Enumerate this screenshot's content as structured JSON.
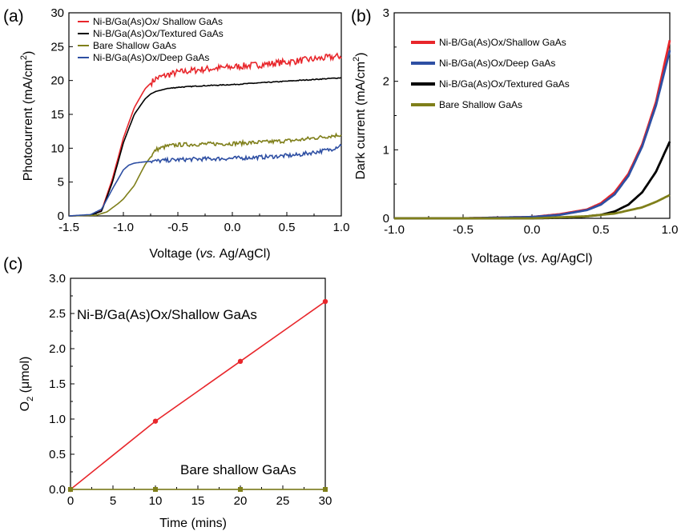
{
  "chart_data": [
    {
      "panel": "(a)",
      "type": "line",
      "xlabel_parts": [
        "Voltage (",
        "vs.",
        " Ag/AgCl)"
      ],
      "ylabel_parts": [
        "Photocurrent (mA/cm",
        "2",
        ")"
      ],
      "xlim": [
        -1.5,
        1.0
      ],
      "ylim": [
        0,
        30
      ],
      "xticks": [
        "-1.5",
        "-1.0",
        "-0.5",
        "0.0",
        "0.5",
        "1.0"
      ],
      "yticks": [
        "0",
        "5",
        "10",
        "15",
        "20",
        "25",
        "30"
      ],
      "legend_position": "top-left",
      "series": [
        {
          "name": "Ni-B/Ga(As)Ox/ Shallow GaAs",
          "color": "#e8262b",
          "noisy": true,
          "x": [
            -1.5,
            -1.3,
            -1.2,
            -1.1,
            -1.0,
            -0.9,
            -0.8,
            -0.75,
            -0.7,
            -0.6,
            -0.5,
            -0.3,
            0.0,
            0.3,
            0.6,
            1.0
          ],
          "y": [
            0.0,
            0.1,
            0.8,
            5.5,
            11.5,
            16.0,
            18.8,
            19.6,
            20.3,
            20.8,
            21.2,
            21.6,
            22.0,
            22.4,
            22.9,
            23.6
          ]
        },
        {
          "name": "Ni-B/Ga(As)Ox/Textured GaAs",
          "color": "#000000",
          "noisy": false,
          "x": [
            -1.5,
            -1.3,
            -1.2,
            -1.1,
            -1.0,
            -0.9,
            -0.8,
            -0.75,
            -0.7,
            -0.6,
            -0.5,
            -0.3,
            0.0,
            0.3,
            0.6,
            1.0
          ],
          "y": [
            0.0,
            0.1,
            0.7,
            5.0,
            10.8,
            15.0,
            17.3,
            18.0,
            18.4,
            18.8,
            19.0,
            19.2,
            19.4,
            19.7,
            20.0,
            20.4
          ]
        },
        {
          "name": "Bare Shallow GaAs",
          "color": "#7f7f1a",
          "noisy": true,
          "x": [
            -1.5,
            -1.25,
            -1.15,
            -1.05,
            -1.0,
            -0.9,
            -0.8,
            -0.7,
            -0.6,
            -0.5,
            -0.3,
            0.0,
            0.3,
            0.6,
            1.0
          ],
          "y": [
            0.0,
            0.1,
            0.6,
            1.8,
            2.5,
            4.5,
            7.6,
            9.8,
            10.3,
            10.5,
            10.6,
            10.7,
            10.9,
            11.2,
            12.0
          ]
        },
        {
          "name": "Ni-B/Ga(As)Ox/Deep GaAs",
          "color": "#2e4fa3",
          "noisy": true,
          "x": [
            -1.5,
            -1.3,
            -1.2,
            -1.1,
            -1.0,
            -0.95,
            -0.9,
            -0.8,
            -0.7,
            -0.6,
            -0.5,
            -0.3,
            0.0,
            0.3,
            0.6,
            0.9,
            1.0
          ],
          "y": [
            0.0,
            0.2,
            1.0,
            4.0,
            6.8,
            7.5,
            7.8,
            8.0,
            8.1,
            8.2,
            8.3,
            8.4,
            8.5,
            8.7,
            9.0,
            9.8,
            10.5
          ]
        }
      ]
    },
    {
      "panel": "(b)",
      "type": "line",
      "xlabel_parts": [
        "Voltage (",
        "vs.",
        " Ag/AgCl)"
      ],
      "ylabel_parts": [
        "Dark current (mA/cm",
        "2",
        ")"
      ],
      "xlim": [
        -1.0,
        1.0
      ],
      "ylim": [
        0,
        3
      ],
      "xticks": [
        "-1.0",
        "-0.5",
        "0.0",
        "0.5",
        "1.0"
      ],
      "yticks": [
        "0",
        "1",
        "2",
        "3"
      ],
      "legend_position": "top-left",
      "series": [
        {
          "name": "Ni-B/Ga(As)Ox/Shallow GaAs",
          "color": "#e8262b",
          "x": [
            -1.0,
            -0.5,
            0.0,
            0.2,
            0.4,
            0.5,
            0.6,
            0.7,
            0.8,
            0.9,
            1.0
          ],
          "y": [
            0.0,
            0.0,
            0.02,
            0.06,
            0.13,
            0.22,
            0.38,
            0.65,
            1.08,
            1.7,
            2.6
          ]
        },
        {
          "name": "Ni-B/Ga(As)Ox/Deep GaAs",
          "color": "#2e4fa3",
          "x": [
            -1.0,
            -0.5,
            0.0,
            0.2,
            0.4,
            0.5,
            0.6,
            0.7,
            0.8,
            0.9,
            1.0
          ],
          "y": [
            0.0,
            0.0,
            0.02,
            0.05,
            0.12,
            0.2,
            0.35,
            0.62,
            1.05,
            1.65,
            2.45
          ]
        },
        {
          "name": "Ni-B/Ga(As)Ox/Textured GaAs",
          "color": "#000000",
          "x": [
            -1.0,
            -0.5,
            0.0,
            0.3,
            0.5,
            0.6,
            0.7,
            0.8,
            0.9,
            1.0
          ],
          "y": [
            0.0,
            0.0,
            0.0,
            0.01,
            0.05,
            0.1,
            0.2,
            0.38,
            0.68,
            1.12
          ]
        },
        {
          "name": "Bare Shallow GaAs",
          "color": "#7f7f1a",
          "x": [
            -1.0,
            -0.5,
            0.0,
            0.4,
            0.6,
            0.8,
            0.9,
            1.0
          ],
          "y": [
            0.0,
            0.0,
            0.0,
            0.03,
            0.07,
            0.16,
            0.24,
            0.34
          ]
        }
      ]
    },
    {
      "panel": "(c)",
      "type": "line",
      "xlabel": "Time (mins)",
      "ylabel_parts": [
        "O",
        "2",
        " (μmol)"
      ],
      "xlim": [
        0,
        30
      ],
      "ylim": [
        0,
        3
      ],
      "xticks": [
        "0",
        "5",
        "10",
        "15",
        "20",
        "25",
        "30"
      ],
      "yticks": [
        "0.0",
        "0.5",
        "1.0",
        "1.5",
        "2.0",
        "2.5",
        "3.0"
      ],
      "annotations": [
        "Ni-B/Ga(As)Ox/Shallow GaAs",
        "Bare shallow GaAs"
      ],
      "series": [
        {
          "name": "Ni-B/Ga(As)Ox/Shallow GaAs",
          "color": "#e8262b",
          "marker": "circle",
          "x": [
            0,
            10,
            20,
            30
          ],
          "y": [
            0.0,
            0.97,
            1.82,
            2.67
          ]
        },
        {
          "name": "Bare shallow GaAs",
          "color": "#7f7f1a",
          "marker": "square",
          "x": [
            0,
            10,
            20,
            30
          ],
          "y": [
            0.0,
            0.0,
            0.0,
            0.0
          ]
        }
      ]
    }
  ]
}
